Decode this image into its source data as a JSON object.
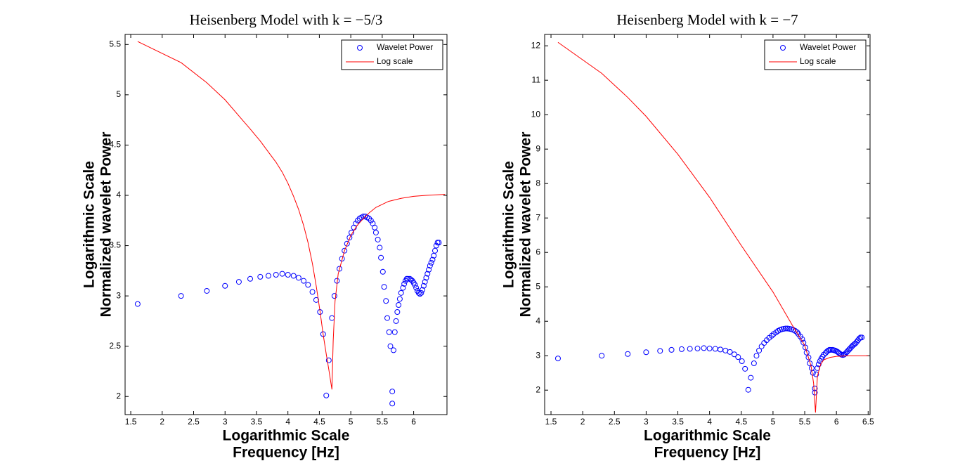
{
  "chart_data": [
    {
      "type": "scatter",
      "title": "Heisenberg Model with k = −5/3",
      "xlabel": [
        "Logarithmic Scale",
        "Frequency [Hz]"
      ],
      "ylabel": [
        "Logarithmic Scale",
        "Normalized wavelet Power"
      ],
      "xlim": [
        1.41,
        6.53
      ],
      "ylim": [
        1.82,
        5.6
      ],
      "xticks": [
        1.5,
        2,
        2.5,
        3,
        3.5,
        4,
        4.5,
        5,
        5.5,
        6
      ],
      "yticks": [
        2,
        2.5,
        3,
        3.5,
        4,
        4.5,
        5,
        5.5
      ],
      "legend": "upper right",
      "series": [
        {
          "name": "Wavelet Power",
          "color": "#0000ff",
          "style": "marker",
          "x": [
            1.61,
            2.3,
            2.71,
            3.0,
            3.22,
            3.4,
            3.56,
            3.69,
            3.81,
            3.91,
            4.0,
            4.09,
            4.17,
            4.25,
            4.32,
            4.39,
            4.45,
            4.51,
            4.56,
            4.61,
            4.65,
            4.7,
            4.74,
            4.78,
            4.82,
            4.86,
            4.9,
            4.94,
            4.98,
            5.01,
            5.05,
            5.08,
            5.11,
            5.14,
            5.17,
            5.2,
            5.23,
            5.26,
            5.29,
            5.32,
            5.35,
            5.38,
            5.4,
            5.43,
            5.46,
            5.48,
            5.51,
            5.53,
            5.56,
            5.58,
            5.61,
            5.63,
            5.66,
            5.66,
            5.68,
            5.7,
            5.72,
            5.74,
            5.76,
            5.78,
            5.8,
            5.83,
            5.85,
            5.87,
            5.89,
            5.91,
            5.94,
            5.96,
            5.98,
            6.0,
            6.02,
            6.04,
            6.06,
            6.08,
            6.1,
            6.12,
            6.14,
            6.16,
            6.18,
            6.2,
            6.22,
            6.24,
            6.26,
            6.28,
            6.3,
            6.32,
            6.34,
            6.36,
            6.38,
            6.4
          ],
          "values": [
            2.92,
            3.0,
            3.05,
            3.1,
            3.14,
            3.17,
            3.19,
            3.2,
            3.21,
            3.22,
            3.21,
            3.2,
            3.18,
            3.15,
            3.11,
            3.04,
            2.96,
            2.84,
            2.62,
            2.01,
            2.36,
            2.78,
            3.0,
            3.15,
            3.27,
            3.37,
            3.45,
            3.52,
            3.58,
            3.63,
            3.68,
            3.72,
            3.75,
            3.77,
            3.78,
            3.79,
            3.79,
            3.78,
            3.77,
            3.75,
            3.72,
            3.68,
            3.63,
            3.56,
            3.48,
            3.38,
            3.24,
            3.09,
            2.95,
            2.78,
            2.64,
            2.5,
            2.05,
            1.93,
            2.46,
            2.64,
            2.75,
            2.84,
            2.91,
            2.97,
            3.03,
            3.08,
            3.12,
            3.15,
            3.17,
            3.17,
            3.17,
            3.16,
            3.15,
            3.13,
            3.11,
            3.08,
            3.05,
            3.03,
            3.02,
            3.03,
            3.06,
            3.1,
            3.14,
            3.18,
            3.22,
            3.26,
            3.3,
            3.33,
            3.36,
            3.4,
            3.45,
            3.5,
            3.53,
            3.53
          ]
        },
        {
          "name": "Log scale",
          "color": "#ff0000",
          "style": "line",
          "x": [
            1.61,
            2.3,
            2.71,
            3.0,
            3.22,
            3.4,
            3.56,
            3.69,
            3.81,
            3.91,
            4.0,
            4.09,
            4.17,
            4.25,
            4.32,
            4.39,
            4.45,
            4.51,
            4.56,
            4.61,
            4.65,
            4.68,
            4.7,
            4.72,
            4.75,
            4.8,
            4.9,
            5.0,
            5.1,
            5.2,
            5.3,
            5.4,
            5.6,
            5.8,
            6.0,
            6.2,
            6.5
          ],
          "values": [
            5.53,
            5.32,
            5.12,
            4.95,
            4.79,
            4.66,
            4.54,
            4.43,
            4.33,
            4.23,
            4.12,
            3.99,
            3.86,
            3.7,
            3.53,
            3.32,
            3.1,
            2.85,
            2.62,
            2.42,
            2.27,
            2.15,
            2.07,
            2.55,
            2.95,
            3.22,
            3.45,
            3.6,
            3.7,
            3.77,
            3.83,
            3.88,
            3.94,
            3.97,
            3.99,
            4.0,
            4.01
          ]
        }
      ]
    },
    {
      "type": "scatter",
      "title": "Heisenberg Model with k = −7",
      "xlabel": [
        "Logarithmic Scale",
        "Frequency [Hz]"
      ],
      "ylabel": [
        "Logarithmic Scale",
        "Normalized wavelet Power"
      ],
      "xlim": [
        1.4,
        6.53
      ],
      "ylim": [
        1.29,
        12.33
      ],
      "xticks": [
        1.5,
        2,
        2.5,
        3,
        3.5,
        4,
        4.5,
        5,
        5.5,
        6,
        6.5
      ],
      "yticks": [
        2,
        3,
        4,
        5,
        6,
        7,
        8,
        9,
        10,
        11,
        12
      ],
      "legend": "upper right",
      "series": [
        {
          "name": "Wavelet Power",
          "color": "#0000ff",
          "style": "marker",
          "x": [
            1.61,
            2.3,
            2.71,
            3.0,
            3.22,
            3.4,
            3.56,
            3.69,
            3.81,
            3.91,
            4.0,
            4.09,
            4.17,
            4.25,
            4.32,
            4.39,
            4.45,
            4.51,
            4.56,
            4.61,
            4.65,
            4.7,
            4.74,
            4.78,
            4.82,
            4.86,
            4.9,
            4.94,
            4.98,
            5.01,
            5.05,
            5.08,
            5.11,
            5.14,
            5.17,
            5.2,
            5.23,
            5.26,
            5.29,
            5.32,
            5.35,
            5.38,
            5.4,
            5.43,
            5.46,
            5.48,
            5.51,
            5.53,
            5.56,
            5.58,
            5.61,
            5.63,
            5.66,
            5.66,
            5.68,
            5.7,
            5.72,
            5.74,
            5.76,
            5.78,
            5.8,
            5.83,
            5.85,
            5.87,
            5.89,
            5.91,
            5.94,
            5.96,
            5.98,
            6.0,
            6.02,
            6.04,
            6.06,
            6.08,
            6.1,
            6.12,
            6.14,
            6.16,
            6.18,
            6.2,
            6.22,
            6.24,
            6.26,
            6.28,
            6.3,
            6.32,
            6.34,
            6.36,
            6.38,
            6.4
          ],
          "values": [
            2.92,
            3.0,
            3.05,
            3.1,
            3.14,
            3.17,
            3.19,
            3.2,
            3.21,
            3.22,
            3.21,
            3.2,
            3.18,
            3.15,
            3.11,
            3.04,
            2.96,
            2.84,
            2.62,
            2.01,
            2.36,
            2.78,
            3.0,
            3.15,
            3.27,
            3.37,
            3.45,
            3.52,
            3.58,
            3.63,
            3.68,
            3.72,
            3.75,
            3.77,
            3.78,
            3.79,
            3.79,
            3.78,
            3.77,
            3.75,
            3.72,
            3.68,
            3.63,
            3.56,
            3.48,
            3.38,
            3.24,
            3.09,
            2.95,
            2.78,
            2.64,
            2.5,
            2.05,
            1.93,
            2.46,
            2.64,
            2.75,
            2.84,
            2.91,
            2.97,
            3.03,
            3.08,
            3.12,
            3.15,
            3.17,
            3.17,
            3.17,
            3.16,
            3.15,
            3.13,
            3.11,
            3.08,
            3.05,
            3.03,
            3.02,
            3.03,
            3.06,
            3.1,
            3.14,
            3.18,
            3.22,
            3.26,
            3.3,
            3.33,
            3.36,
            3.4,
            3.45,
            3.5,
            3.53,
            3.53
          ]
        },
        {
          "name": "Log scale",
          "color": "#ff0000",
          "style": "line",
          "x": [
            1.61,
            2.3,
            2.71,
            3.0,
            3.5,
            4.0,
            4.5,
            5.0,
            5.3,
            5.5,
            5.6,
            5.64,
            5.67,
            5.7,
            5.75,
            5.8,
            5.9,
            6.0,
            6.2,
            6.5
          ],
          "values": [
            12.1,
            11.2,
            10.5,
            9.95,
            8.85,
            7.6,
            6.2,
            4.85,
            3.9,
            3.3,
            2.7,
            2.2,
            1.35,
            2.4,
            2.75,
            2.88,
            2.95,
            2.98,
            3.0,
            3.0
          ]
        }
      ]
    }
  ]
}
